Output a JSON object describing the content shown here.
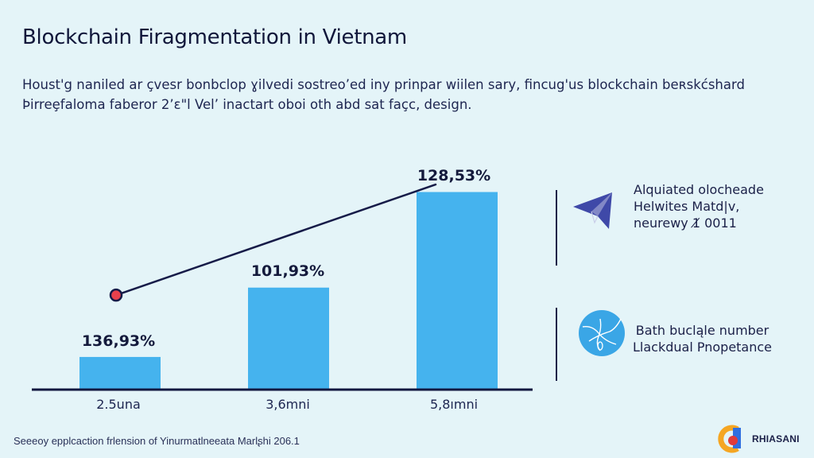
{
  "header": {
    "title": "Blockchain Firagmentation in Vietnam",
    "subtitle_lines": [
      "Houst'g naniled ar çvesr bonbclop ɣilvedi sostreo’ed iny prinpar wiilen sary, fincug'us blockchain beʀskćshard",
      "Þirreȩfaloma faberor 2ʼε\"l Vel’ inactart oboi oth abd sat façc, design."
    ]
  },
  "chart_data": {
    "type": "bar",
    "categories": [
      "2.5una",
      "3,6mni",
      "5,8ımni"
    ],
    "bar_labels": [
      "136,93%",
      "101,93%",
      "128,53%"
    ],
    "values": [
      17,
      54,
      105
    ],
    "ylim": [
      0,
      112
    ],
    "grid": false,
    "bar_color": "#45b3ee",
    "overlay_line": {
      "points": [
        [
          0.45,
          50
        ],
        [
          4.4,
          109
        ]
      ],
      "color": "#161b48",
      "start_marker_color": "#e8404c"
    },
    "title": "",
    "xlabel": "",
    "ylabel": ""
  },
  "legend": {
    "items": [
      {
        "icon": "paper-plane-icon",
        "icon_color": "#3f49a8",
        "lines": [
          "Alquiated olocheade",
          "Helwites Matd|v,",
          "neurewy 1̸ 0011"
        ]
      },
      {
        "icon": "globe-network-icon",
        "icon_color": "#3aa6e6",
        "lines": [
          "Bath bucląle number",
          "Llackdual Pnopetance"
        ]
      }
    ]
  },
  "footer": {
    "source": "Seeeoy epplcaction frlension of Yinurmatlneeata Marlʂhi 206.1"
  },
  "brand": {
    "name": "RHIASANI",
    "colors": {
      "orange": "#f5a623",
      "blue": "#2f6fe0",
      "red": "#e03a3a"
    }
  }
}
